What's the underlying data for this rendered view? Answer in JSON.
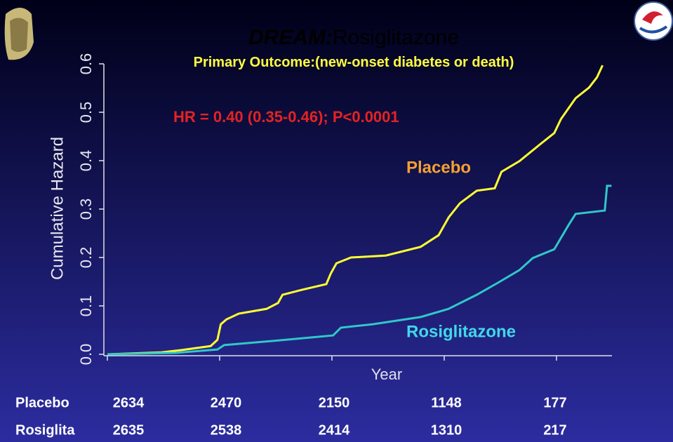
{
  "chart_data": {
    "type": "line",
    "title": [
      "DREAM:",
      "Rosiglitazone"
    ],
    "subtitle": [
      "Primary Outcome:",
      "(new-onset diabetes or death)"
    ],
    "annotation": "HR = 0.40 (0.35-0.46); P<0.0001",
    "y_label": "Cumulative Hazard",
    "x_label": "Year",
    "xlim": [
      0,
      4.5
    ],
    "xticks": [
      0,
      1,
      2,
      3,
      4
    ],
    "ylim": [
      0,
      0.6
    ],
    "yticks": [
      {
        "value": 0,
        "label": "0.0"
      },
      0.1,
      0.2,
      0.3,
      0.4,
      0.5,
      0.6
    ],
    "series": [
      {
        "name": "Placebo",
        "color": "#ffff33",
        "label_color": "#f5a030",
        "x": [
          0,
          0.48,
          0.67,
          0.92,
          0.98,
          1.01,
          1.06,
          1.17,
          1.42,
          1.52,
          1.56,
          1.73,
          1.95,
          1.99,
          2.04,
          2.17,
          2.48,
          2.79,
          2.95,
          3.04,
          3.14,
          3.29,
          3.45,
          3.51,
          3.67,
          3.86,
          3.98,
          4.04,
          4.17,
          4.29,
          4.36,
          4.41
        ],
        "values": [
          0,
          0.004,
          0.009,
          0.017,
          0.03,
          0.062,
          0.072,
          0.084,
          0.094,
          0.106,
          0.123,
          0.133,
          0.145,
          0.167,
          0.188,
          0.2,
          0.204,
          0.222,
          0.246,
          0.283,
          0.312,
          0.338,
          0.343,
          0.377,
          0.399,
          0.435,
          0.457,
          0.486,
          0.529,
          0.551,
          0.572,
          0.597
        ]
      },
      {
        "name": "Rosiglitazone",
        "color": "#30c8c8",
        "label_color": "#40d8e8",
        "x": [
          0,
          0.61,
          0.98,
          1.04,
          1.54,
          2.01,
          2.08,
          2.36,
          2.79,
          3.04,
          3.29,
          3.48,
          3.67,
          3.79,
          3.98,
          4.11,
          4.17,
          4.43,
          4.45,
          4.49
        ],
        "values": [
          0,
          0.003,
          0.01,
          0.019,
          0.029,
          0.039,
          0.055,
          0.062,
          0.077,
          0.094,
          0.123,
          0.148,
          0.174,
          0.199,
          0.217,
          0.268,
          0.29,
          0.297,
          0.348,
          0.348
        ]
      }
    ],
    "risk_table": [
      {
        "label": "Placebo",
        "values": [
          2634,
          2470,
          2150,
          1148,
          177
        ]
      },
      {
        "label": "Rosiglita",
        "values": [
          2635,
          2538,
          2414,
          1310,
          217
        ]
      }
    ]
  }
}
